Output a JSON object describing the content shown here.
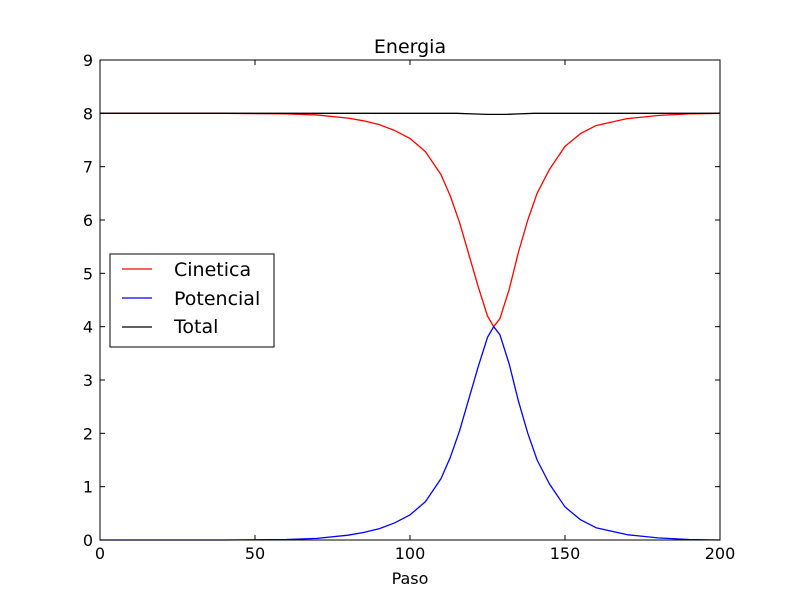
{
  "chart_data": {
    "type": "line",
    "title": "Energia",
    "xlabel": "Paso",
    "ylabel": "",
    "xlim": [
      0,
      200
    ],
    "ylim": [
      0,
      9
    ],
    "xticks": [
      0,
      50,
      100,
      150,
      200
    ],
    "yticks": [
      0,
      1,
      2,
      3,
      4,
      5,
      6,
      7,
      8,
      9
    ],
    "grid": false,
    "legend_position": "center-left",
    "series": [
      {
        "name": "Cinetica",
        "color": "#ff0000",
        "x": [
          0,
          20,
          40,
          60,
          70,
          80,
          85,
          90,
          95,
          100,
          105,
          110,
          113,
          116,
          119,
          122,
          125,
          127,
          129,
          132,
          135,
          138,
          141,
          145,
          150,
          155,
          160,
          170,
          180,
          190,
          200
        ],
        "y": [
          8.0,
          8.0,
          8.0,
          7.99,
          7.97,
          7.91,
          7.86,
          7.79,
          7.68,
          7.53,
          7.28,
          6.85,
          6.45,
          5.95,
          5.35,
          4.75,
          4.2,
          4.0,
          4.15,
          4.7,
          5.4,
          6.0,
          6.5,
          6.95,
          7.38,
          7.62,
          7.77,
          7.9,
          7.96,
          7.99,
          8.0
        ]
      },
      {
        "name": "Potencial",
        "color": "#0000ff",
        "x": [
          0,
          20,
          40,
          60,
          70,
          80,
          85,
          90,
          95,
          100,
          105,
          110,
          113,
          116,
          119,
          122,
          125,
          127,
          129,
          132,
          135,
          138,
          141,
          145,
          150,
          155,
          160,
          170,
          180,
          190,
          200
        ],
        "y": [
          0.0,
          0.0,
          0.0,
          0.01,
          0.03,
          0.09,
          0.14,
          0.21,
          0.32,
          0.47,
          0.72,
          1.15,
          1.55,
          2.05,
          2.65,
          3.25,
          3.8,
          4.0,
          3.85,
          3.3,
          2.6,
          2.0,
          1.5,
          1.05,
          0.62,
          0.38,
          0.23,
          0.1,
          0.04,
          0.01,
          0.0
        ]
      },
      {
        "name": "Total",
        "color": "#000000",
        "x": [
          0,
          50,
          100,
          115,
          120,
          125,
          128,
          131,
          135,
          140,
          150,
          200
        ],
        "y": [
          8.0,
          8.0,
          8.0,
          8.0,
          7.99,
          7.98,
          7.98,
          7.98,
          7.99,
          8.0,
          8.0,
          8.0
        ]
      }
    ]
  }
}
